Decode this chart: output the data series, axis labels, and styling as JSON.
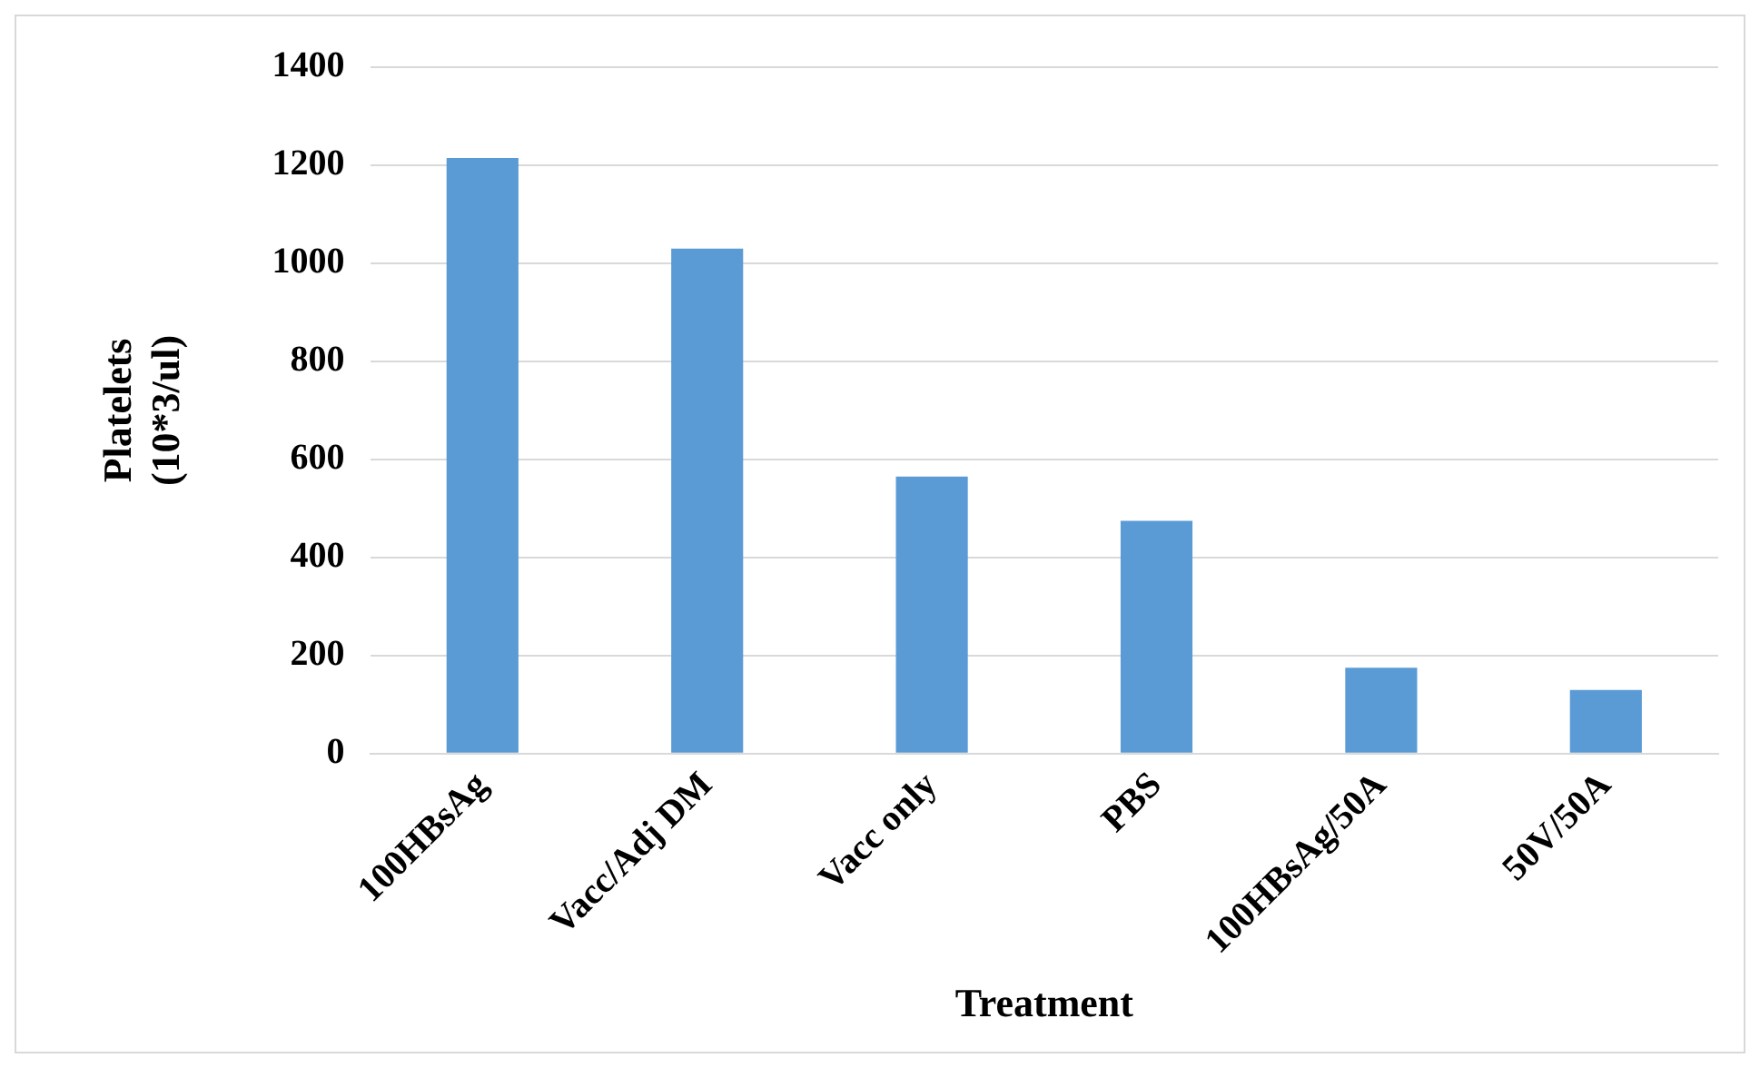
{
  "chart_data": {
    "type": "bar",
    "xlabel": "Treatment",
    "ylabel": "Platelets\n(10*3/ul)",
    "categories": [
      "100HBsAg",
      "Vacc/Adj DM",
      "Vacc only",
      "PBS",
      "100HBsAg/50A",
      "50V/50A"
    ],
    "values": [
      1215,
      1030,
      565,
      475,
      175,
      130
    ],
    "color": "#5b9bd5",
    "ylim": [
      0,
      1400
    ],
    "yticks": [
      0,
      200,
      400,
      600,
      800,
      1000,
      1200,
      1400
    ],
    "grid": "y",
    "legend": false
  }
}
